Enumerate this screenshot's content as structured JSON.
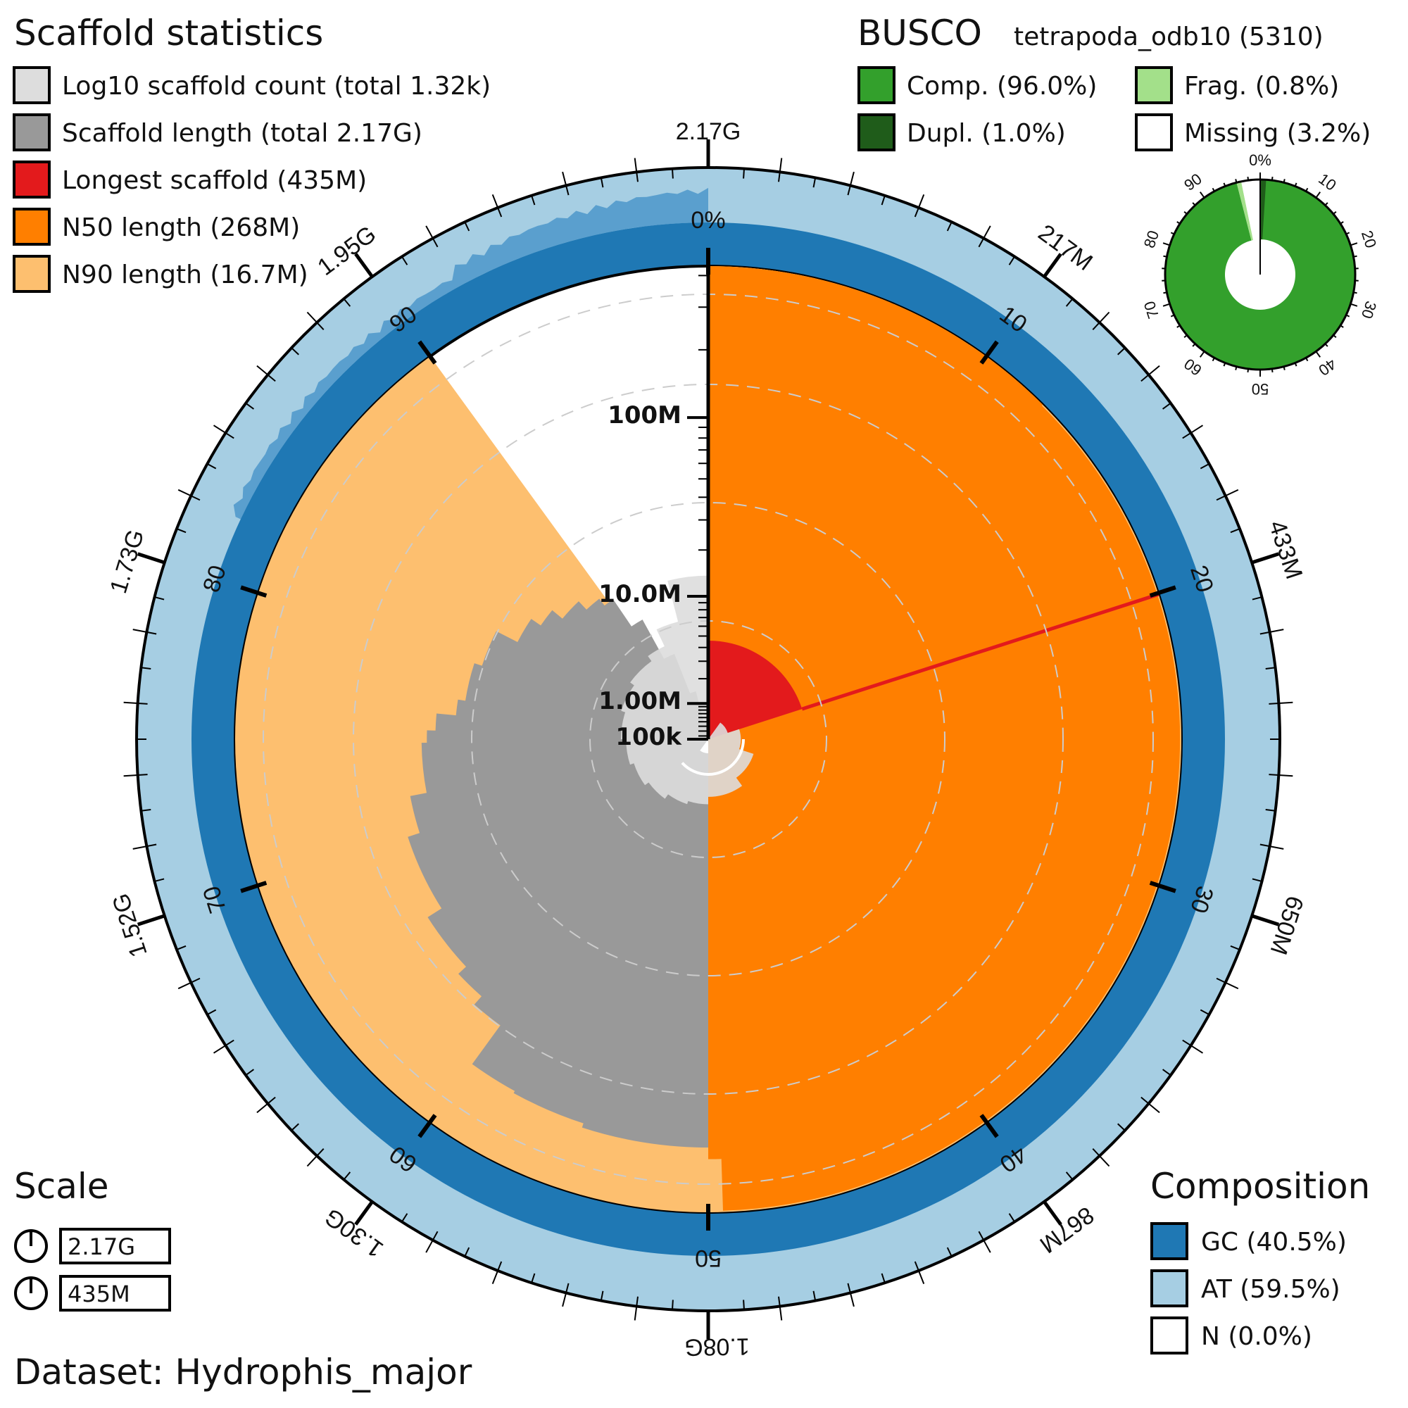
{
  "chart_data": {
    "type": "snail",
    "dataset_label": "Dataset: Hydrophis_major",
    "scaffold_stats": {
      "title": "Scaffold statistics",
      "legend": [
        {
          "key": "count",
          "label": "Log10 scaffold count (total 1.32k)",
          "color": "#dddddd"
        },
        {
          "key": "length",
          "label": "Scaffold length (total 2.17G)",
          "color": "#999999"
        },
        {
          "key": "longest",
          "label": "Longest scaffold (435M)",
          "color": "#e31a1c"
        },
        {
          "key": "n50",
          "label": "N50 length (268M)",
          "color": "#ff7f00"
        },
        {
          "key": "n90",
          "label": "N90 length (16.7M)",
          "color": "#fdbf6f"
        }
      ],
      "total_span": 2170000000,
      "longest_scaffold": 435000000,
      "n50": 268000000,
      "n90": 16700000,
      "scaffold_count": 1320
    },
    "outer_axis_labels": [
      {
        "value": 0,
        "label": "2.17G"
      },
      {
        "value": 217000000,
        "label": "217M"
      },
      {
        "value": 433000000,
        "label": "433M"
      },
      {
        "value": 650000000,
        "label": "650M"
      },
      {
        "value": 867000000,
        "label": "867M"
      },
      {
        "value": 1080000000,
        "label": "1.08G"
      },
      {
        "value": 1300000000,
        "label": "1.30G"
      },
      {
        "value": 1520000000,
        "label": "1.52G"
      },
      {
        "value": 1730000000,
        "label": "1.73G"
      },
      {
        "value": 1950000000,
        "label": "1.95G"
      }
    ],
    "percent_axis_labels": [
      "0%",
      "10",
      "20",
      "30",
      "40",
      "50",
      "60",
      "70",
      "80",
      "90"
    ],
    "radial_scale_labels": [
      "100k",
      "1.00M",
      "10.0M",
      "100M"
    ],
    "length_profile": [
      {
        "pct": 0,
        "length": 435000000
      },
      {
        "pct": 12,
        "length": 435000000
      },
      {
        "pct": 12.5,
        "length": 430000000
      },
      {
        "pct": 49.5,
        "length": 268000000
      },
      {
        "pct": 50.5,
        "length": 240000000
      },
      {
        "pct": 55,
        "length": 230000000
      },
      {
        "pct": 58,
        "length": 225000000
      },
      {
        "pct": 60,
        "length": 140000000
      },
      {
        "pct": 61.5,
        "length": 125000000
      },
      {
        "pct": 63,
        "length": 112000000
      },
      {
        "pct": 66,
        "length": 94000000
      },
      {
        "pct": 70,
        "length": 82000000
      },
      {
        "pct": 72,
        "length": 68000000
      },
      {
        "pct": 74.8,
        "length": 64000000
      },
      {
        "pct": 75.5,
        "length": 58000000
      },
      {
        "pct": 76.5,
        "length": 46000000
      },
      {
        "pct": 77.5,
        "length": 42000000
      },
      {
        "pct": 80,
        "length": 38000000
      },
      {
        "pct": 82.5,
        "length": 28000000
      },
      {
        "pct": 84.5,
        "length": 24000000
      },
      {
        "pct": 86,
        "length": 20000000
      },
      {
        "pct": 88,
        "length": 17000000
      },
      {
        "pct": 89.5,
        "length": 15000000
      },
      {
        "pct": 90.5,
        "length": 9000000
      },
      {
        "pct": 92,
        "length": 4000000
      },
      {
        "pct": 94,
        "length": 1500000
      },
      {
        "pct": 96,
        "length": 500000
      },
      {
        "pct": 98,
        "length": 200000
      },
      {
        "pct": 100,
        "length": 100000
      }
    ],
    "count_profile": [
      {
        "pct": 0,
        "count": 1
      },
      {
        "pct": 10,
        "count": 2
      },
      {
        "pct": 20,
        "count": 3
      },
      {
        "pct": 30,
        "count": 5
      },
      {
        "pct": 40,
        "count": 7
      },
      {
        "pct": 50,
        "count": 9
      },
      {
        "pct": 55,
        "count": 10
      },
      {
        "pct": 60,
        "count": 12
      },
      {
        "pct": 65,
        "count": 14
      },
      {
        "pct": 70,
        "count": 16
      },
      {
        "pct": 75,
        "count": 19
      },
      {
        "pct": 80,
        "count": 22
      },
      {
        "pct": 85,
        "count": 26
      },
      {
        "pct": 90,
        "count": 32
      },
      {
        "pct": 93,
        "count": 60
      },
      {
        "pct": 96,
        "count": 250
      },
      {
        "pct": 100,
        "count": 1320
      }
    ],
    "busco": {
      "title": "BUSCO",
      "lineage": "tetrapoda_odb10 (5310)",
      "legend": [
        {
          "key": "complete",
          "label": "Comp. (96.0%)",
          "value": 96.0,
          "color": "#33a02c"
        },
        {
          "key": "duplicated",
          "label": "Dupl. (1.0%)",
          "value": 1.0,
          "color": "#1f5c1a"
        },
        {
          "key": "fragmented",
          "label": "Frag. (0.8%)",
          "value": 0.8,
          "color": "#a3e08a"
        },
        {
          "key": "missing",
          "label": "Missing (3.2%)",
          "value": 3.2,
          "color": "#ffffff"
        }
      ],
      "tick_labels": [
        "0%",
        "10",
        "20",
        "30",
        "40",
        "50",
        "60",
        "70",
        "80",
        "90"
      ]
    },
    "composition": {
      "title": "Composition",
      "legend": [
        {
          "key": "gc",
          "label": "GC (40.5%)",
          "value": 40.5,
          "color": "#1f78b4"
        },
        {
          "key": "at",
          "label": "AT (59.5%)",
          "value": 59.5,
          "color": "#a6cee3"
        },
        {
          "key": "n",
          "label": "N (0.0%)",
          "value": 0.0,
          "color": "#ffffff"
        }
      ]
    },
    "scale": {
      "title": "Scale",
      "items": [
        {
          "label": "2.17G"
        },
        {
          "label": "435M"
        }
      ]
    }
  }
}
